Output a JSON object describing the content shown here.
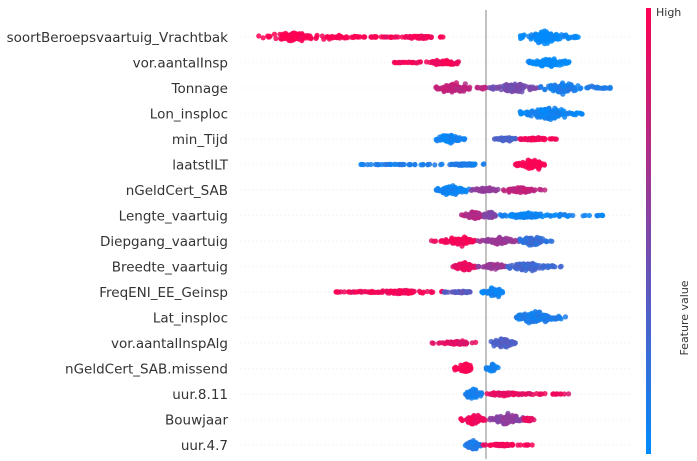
{
  "chart_data": {
    "type": "scatter",
    "subtype": "shap-beeswarm",
    "title": "",
    "xlabel": "",
    "ylabel": "",
    "grid": false,
    "zero_line": true,
    "colorbar": {
      "label": "Feature value",
      "high_label": "High",
      "low_label": "",
      "colors": {
        "low": "#008bfb",
        "high": "#ff0052"
      }
    },
    "features": [
      {
        "name": "soortBeroepsvaartuig_Vrachtbak",
        "groups": [
          {
            "from": -0.55,
            "to": -0.25,
            "center": -0.46,
            "color": 1.0,
            "h": 0.55
          },
          {
            "from": -0.25,
            "to": -0.1,
            "center": -0.16,
            "color": 0.95,
            "h": 0.2
          },
          {
            "from": 0.08,
            "to": 0.22,
            "center": 0.14,
            "color": 0.0,
            "h": 0.85
          }
        ]
      },
      {
        "name": "vor.aantalInsp",
        "groups": [
          {
            "from": -0.22,
            "to": -0.06,
            "center": -0.1,
            "color": 0.95,
            "h": 0.35
          },
          {
            "from": 0.1,
            "to": 0.2,
            "center": 0.15,
            "color": 0.0,
            "h": 0.75
          }
        ]
      },
      {
        "name": "Tonnage",
        "groups": [
          {
            "from": -0.12,
            "to": 0.0,
            "center": -0.07,
            "color": 0.75,
            "h": 0.7
          },
          {
            "from": 0.0,
            "to": 0.13,
            "center": 0.07,
            "color": 0.45,
            "h": 0.6
          },
          {
            "from": 0.13,
            "to": 0.3,
            "center": 0.18,
            "color": 0.1,
            "h": 0.65
          }
        ]
      },
      {
        "name": "Lon_insploc",
        "groups": [
          {
            "from": 0.08,
            "to": 0.24,
            "center": 0.15,
            "color": 0.05,
            "h": 0.95
          }
        ]
      },
      {
        "name": "min_Tijd",
        "groups": [
          {
            "from": -0.12,
            "to": -0.05,
            "center": -0.09,
            "color": 0.05,
            "h": 0.7
          },
          {
            "from": 0.02,
            "to": 0.08,
            "center": 0.05,
            "color": 0.3,
            "h": 0.3
          },
          {
            "from": 0.08,
            "to": 0.18,
            "center": 0.12,
            "color": 0.95,
            "h": 0.2
          }
        ]
      },
      {
        "name": "laatstILT",
        "groups": [
          {
            "from": -0.3,
            "to": 0.0,
            "center": -0.05,
            "color": 0.1,
            "h": 0.12
          },
          {
            "from": 0.07,
            "to": 0.14,
            "center": 0.11,
            "color": 1.0,
            "h": 0.75
          }
        ]
      },
      {
        "name": "nGeldCert_SAB",
        "groups": [
          {
            "from": -0.12,
            "to": -0.04,
            "center": -0.08,
            "color": 0.05,
            "h": 0.75
          },
          {
            "from": -0.04,
            "to": 0.04,
            "center": 0.0,
            "color": 0.55,
            "h": 0.3
          },
          {
            "from": 0.04,
            "to": 0.14,
            "center": 0.08,
            "color": 0.75,
            "h": 0.45
          }
        ]
      },
      {
        "name": "Lengte_vaartuig",
        "groups": [
          {
            "from": -0.06,
            "to": -0.01,
            "center": -0.03,
            "color": 0.7,
            "h": 0.65
          },
          {
            "from": -0.01,
            "to": 0.03,
            "center": 0.01,
            "color": 0.5,
            "h": 0.6
          },
          {
            "from": 0.03,
            "to": 0.28,
            "center": 0.1,
            "color": 0.05,
            "h": 0.3
          }
        ]
      },
      {
        "name": "Diepgang_vaartuig",
        "groups": [
          {
            "from": -0.13,
            "to": -0.02,
            "center": -0.06,
            "color": 0.95,
            "h": 0.55
          },
          {
            "from": -0.02,
            "to": 0.08,
            "center": 0.03,
            "color": 0.6,
            "h": 0.5
          },
          {
            "from": 0.08,
            "to": 0.16,
            "center": 0.11,
            "color": 0.2,
            "h": 0.75
          }
        ]
      },
      {
        "name": "Breedte_vaartuig",
        "groups": [
          {
            "from": -0.08,
            "to": -0.02,
            "center": -0.05,
            "color": 0.9,
            "h": 0.7
          },
          {
            "from": -0.02,
            "to": 0.05,
            "center": 0.02,
            "color": 0.6,
            "h": 0.45
          },
          {
            "from": 0.05,
            "to": 0.18,
            "center": 0.1,
            "color": 0.25,
            "h": 0.6
          }
        ]
      },
      {
        "name": "FreqENI_EE_Geinsp",
        "groups": [
          {
            "from": -0.36,
            "to": -0.1,
            "center": -0.2,
            "color": 0.95,
            "h": 0.25
          },
          {
            "from": -0.1,
            "to": -0.03,
            "center": -0.06,
            "color": 0.35,
            "h": 0.15
          },
          {
            "from": -0.01,
            "to": 0.04,
            "center": 0.02,
            "color": 0.05,
            "h": 0.7
          }
        ]
      },
      {
        "name": "Lat_insploc",
        "groups": [
          {
            "from": 0.07,
            "to": 0.19,
            "center": 0.12,
            "color": 0.1,
            "h": 0.85
          }
        ]
      },
      {
        "name": "vor.aantalInspAlg",
        "groups": [
          {
            "from": -0.13,
            "to": -0.01,
            "center": -0.07,
            "color": 0.9,
            "h": 0.3
          },
          {
            "from": 0.01,
            "to": 0.07,
            "center": 0.04,
            "color": 0.3,
            "h": 0.75
          }
        ]
      },
      {
        "name": "nGeldCert_SAB.missend",
        "groups": [
          {
            "from": -0.08,
            "to": -0.03,
            "center": -0.05,
            "color": 1.0,
            "h": 0.85
          },
          {
            "from": 0.0,
            "to": 0.03,
            "center": 0.015,
            "color": 0.05,
            "h": 0.5
          }
        ]
      },
      {
        "name": "uur.8.11",
        "groups": [
          {
            "from": -0.05,
            "to": -0.01,
            "center": -0.03,
            "color": 0.1,
            "h": 0.75
          },
          {
            "from": -0.01,
            "to": 0.2,
            "center": 0.04,
            "color": 0.9,
            "h": 0.2
          }
        ]
      },
      {
        "name": "Bouwjaar",
        "groups": [
          {
            "from": -0.06,
            "to": 0.0,
            "center": -0.03,
            "color": 0.95,
            "h": 0.75
          },
          {
            "from": 0.0,
            "to": 0.09,
            "center": 0.05,
            "color": 0.55,
            "h": 0.8
          },
          {
            "from": 0.09,
            "to": 0.12,
            "center": 0.1,
            "color": 0.9,
            "h": 0.3
          }
        ]
      },
      {
        "name": "uur.4.7",
        "groups": [
          {
            "from": -0.05,
            "to": -0.01,
            "center": -0.03,
            "color": 0.1,
            "h": 0.8
          },
          {
            "from": -0.01,
            "to": 0.12,
            "center": 0.04,
            "color": 0.95,
            "h": 0.15
          }
        ]
      }
    ]
  }
}
